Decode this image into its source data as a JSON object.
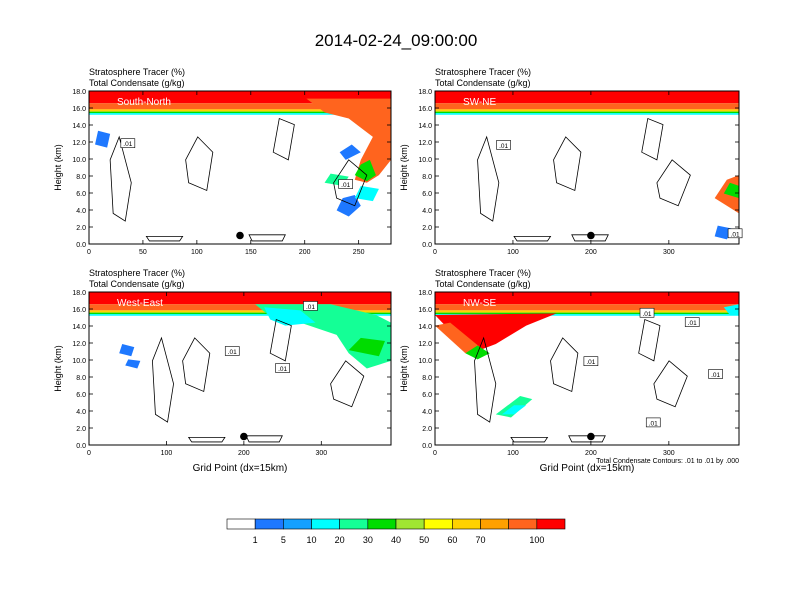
{
  "title": "2014-02-24_09:00:00",
  "colorbar": {
    "colors": [
      "#ffffff",
      "#1e78ff",
      "#14a0ff",
      "#00ffff",
      "#14ff96",
      "#00dc00",
      "#a0e632",
      "#ffff00",
      "#ffd200",
      "#ffa000",
      "#ff641e",
      "#ff0000"
    ],
    "labels": [
      "1",
      "5",
      "10",
      "20",
      "30",
      "40",
      "50",
      "60",
      "70",
      "100"
    ]
  },
  "chart_data": [
    {
      "type": "heatmap",
      "name": "South-North",
      "title_lines": [
        "Stratosphere Tracer   (%)",
        "Total Condensate   (g/kg)"
      ],
      "ylabel": "Height (km)",
      "xlabel": "",
      "xlim": [
        0,
        280
      ],
      "ylim": [
        0,
        18
      ],
      "xticks": [
        0,
        50,
        100,
        150,
        200,
        250
      ],
      "yticks": [
        "0.0",
        "2.0",
        "4.0",
        "6.0",
        "8.0",
        "10.0",
        "12.0",
        "14.0",
        "16.0",
        "18.0"
      ],
      "marker": {
        "x": 140,
        "y": 1.0
      },
      "contour_labels": [
        {
          "text": ".01",
          "x": 36,
          "y": 11.8
        },
        {
          "text": ".01",
          "x": 238,
          "y": 7.0
        }
      ]
    },
    {
      "type": "heatmap",
      "name": "SW-NE",
      "title_lines": [
        "Stratosphere Tracer   (%)",
        "Total Condensate   (g/kg)"
      ],
      "ylabel": "Height (km)",
      "xlabel": "",
      "xlim": [
        0,
        390
      ],
      "ylim": [
        0,
        18
      ],
      "xticks": [
        0,
        100,
        200,
        300
      ],
      "yticks": [
        "0.0",
        "2.0",
        "4.0",
        "6.0",
        "8.0",
        "10.0",
        "12.0",
        "14.0",
        "16.0",
        "18.0"
      ],
      "marker": {
        "x": 200,
        "y": 1.0
      },
      "contour_labels": [
        {
          "text": ".01",
          "x": 88,
          "y": 11.6
        },
        {
          "text": ".01",
          "x": 385,
          "y": 1.2
        }
      ]
    },
    {
      "type": "heatmap",
      "name": "West-East",
      "title_lines": [
        "Stratosphere Tracer   (%)",
        "Total Condensate   (g/kg)"
      ],
      "ylabel": "Height (km)",
      "xlabel": "Grid Point (dx=15km)",
      "xlim": [
        0,
        390
      ],
      "ylim": [
        0,
        18
      ],
      "xticks": [
        0,
        100,
        200,
        300
      ],
      "yticks": [
        "0.0",
        "2.0",
        "4.0",
        "6.0",
        "8.0",
        "10.0",
        "12.0",
        "14.0",
        "16.0",
        "18.0"
      ],
      "marker": {
        "x": 200,
        "y": 1.0
      },
      "contour_labels": [
        {
          "text": ".01",
          "x": 286,
          "y": 16.3
        },
        {
          "text": ".01",
          "x": 185,
          "y": 11.0
        },
        {
          "text": ".01",
          "x": 250,
          "y": 9.0
        }
      ]
    },
    {
      "type": "heatmap",
      "name": "NW-SE",
      "title_lines": [
        "Stratosphere Tracer   (%)",
        "Total Condensate   (g/kg)"
      ],
      "ylabel": "Height (km)",
      "xlabel": "Grid Point (dx=15km)",
      "footnote": "Total Condensate Contours: .01 to .01 by .000",
      "xlim": [
        0,
        390
      ],
      "ylim": [
        0,
        18
      ],
      "xticks": [
        0,
        100,
        200,
        300
      ],
      "yticks": [
        "0.0",
        "2.0",
        "4.0",
        "6.0",
        "8.0",
        "10.0",
        "12.0",
        "14.0",
        "16.0",
        "18.0"
      ],
      "marker": {
        "x": 200,
        "y": 1.0
      },
      "contour_labels": [
        {
          "text": ".01",
          "x": 272,
          "y": 15.5
        },
        {
          "text": ".01",
          "x": 330,
          "y": 14.4
        },
        {
          "text": ".01",
          "x": 200,
          "y": 9.8
        },
        {
          "text": ".01",
          "x": 360,
          "y": 8.3
        },
        {
          "text": ".01",
          "x": 280,
          "y": 2.6
        }
      ]
    }
  ]
}
